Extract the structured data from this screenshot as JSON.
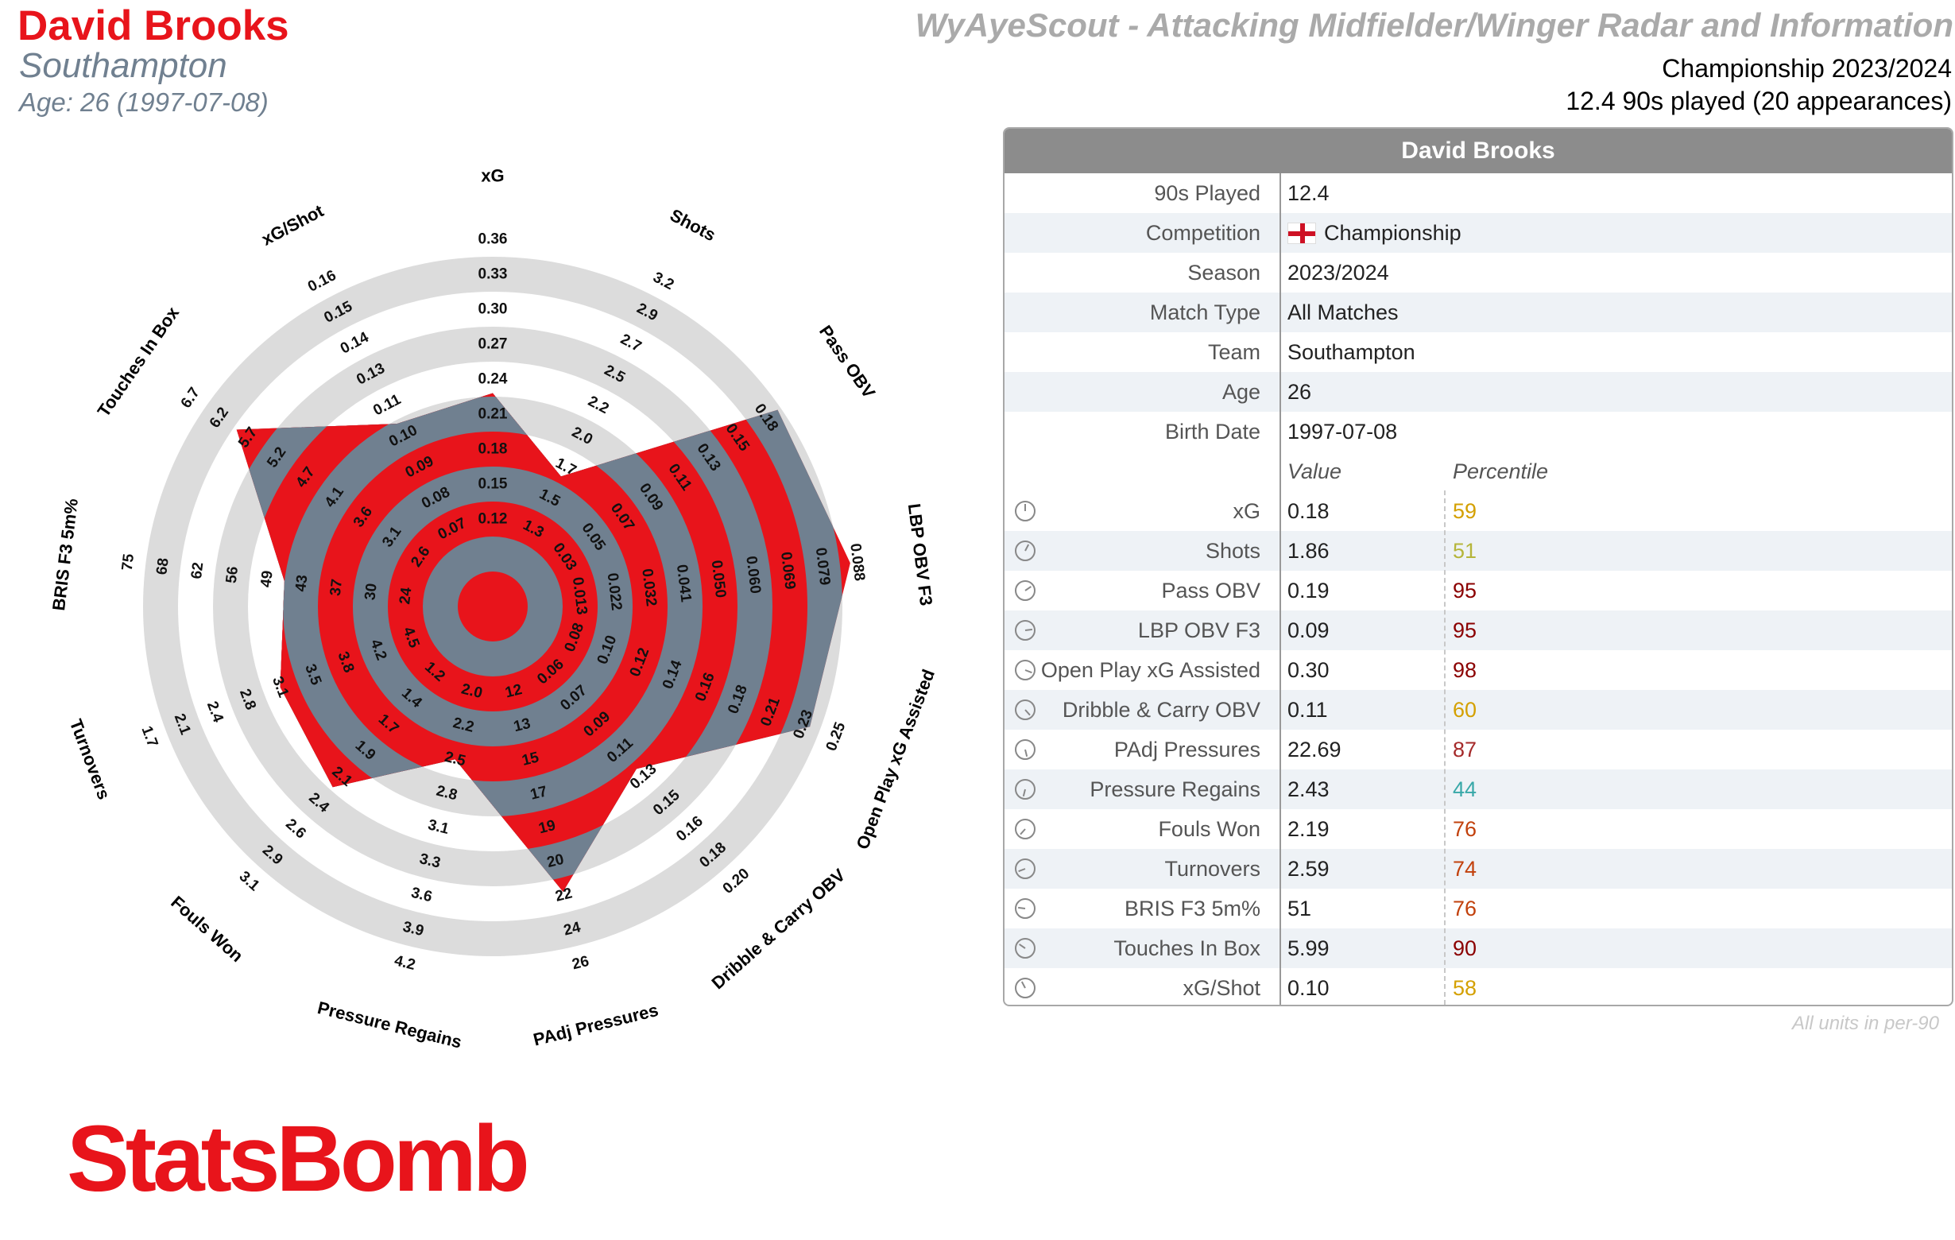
{
  "header": {
    "player_name": "David Brooks",
    "team": "Southampton",
    "age_line": "Age: 26 (1997-07-08)",
    "report_title": "WyAyeScout - Attacking Midfielder/Winger Radar and Information",
    "competition_season": "Championship 2023/2024",
    "minutes_line": "12.4 90s played (20 appearances)"
  },
  "colors": {
    "accent_red": "#e8141b",
    "radar_fill": "#708090",
    "ring_gray": "#dcdcdc"
  },
  "chart_data": {
    "type": "radar",
    "n_rings": 11,
    "metrics": [
      {
        "name": "xG",
        "value": 0.18,
        "percentile": 59,
        "ticks": [
          "0.12",
          "0.15",
          "0.18",
          "0.21",
          "0.24",
          "0.27",
          "0.30",
          "0.33",
          "0.36"
        ]
      },
      {
        "name": "Shots",
        "value": 1.86,
        "percentile": 51,
        "ticks": [
          "1.3",
          "1.5",
          "1.7",
          "2.0",
          "2.2",
          "2.5",
          "2.7",
          "2.9",
          "3.2"
        ]
      },
      {
        "name": "Pass OBV",
        "value": 0.19,
        "percentile": 95,
        "ticks": [
          "0.03",
          "0.05",
          "0.07",
          "0.09",
          "0.11",
          "0.13",
          "0.15",
          "0.18"
        ]
      },
      {
        "name": "LBP OBV F3",
        "value": 0.09,
        "percentile": 95,
        "ticks": [
          "0.013",
          "0.022",
          "0.032",
          "0.041",
          "0.050",
          "0.060",
          "0.069",
          "0.079",
          "0.088"
        ]
      },
      {
        "name": "Open Play xG Assisted",
        "value": 0.3,
        "percentile": 98,
        "ticks": [
          "0.08",
          "0.10",
          "0.12",
          "0.14",
          "0.16",
          "0.18",
          "0.21",
          "0.23",
          "0.25"
        ]
      },
      {
        "name": "Dribble & Carry OBV",
        "value": 0.11,
        "percentile": 60,
        "ticks": [
          "0.06",
          "0.07",
          "0.09",
          "0.11",
          "0.13",
          "0.15",
          "0.16",
          "0.18",
          "0.20"
        ]
      },
      {
        "name": "PAdj Pressures",
        "value": 22.69,
        "percentile": 87,
        "ticks": [
          "12",
          "13",
          "15",
          "17",
          "19",
          "20",
          "22",
          "24",
          "26"
        ]
      },
      {
        "name": "Pressure Regains",
        "value": 2.43,
        "percentile": 44,
        "ticks": [
          "2.0",
          "2.2",
          "2.5",
          "2.8",
          "3.1",
          "3.3",
          "3.6",
          "3.9",
          "4.2"
        ]
      },
      {
        "name": "Fouls Won",
        "value": 2.19,
        "percentile": 76,
        "ticks": [
          "1.2",
          "1.4",
          "1.7",
          "1.9",
          "2.1",
          "2.4",
          "2.6",
          "2.9",
          "3.1"
        ]
      },
      {
        "name": "Turnovers",
        "value": 2.59,
        "percentile": 74,
        "ticks": [
          "4.5",
          "4.2",
          "3.8",
          "3.5",
          "3.1",
          "2.8",
          "2.4",
          "2.1",
          "1.7"
        ]
      },
      {
        "name": "BRIS F3 5m%",
        "value": 51,
        "percentile": 76,
        "ticks": [
          "24",
          "30",
          "37",
          "43",
          "49",
          "56",
          "62",
          "68",
          "75"
        ]
      },
      {
        "name": "Touches In Box",
        "value": 5.99,
        "percentile": 90,
        "ticks": [
          "2.6",
          "3.1",
          "3.6",
          "4.1",
          "4.7",
          "5.2",
          "5.7",
          "6.2",
          "6.7"
        ]
      },
      {
        "name": "xG/Shot",
        "value": 0.1,
        "percentile": 58,
        "ticks": [
          "0.07",
          "0.08",
          "0.09",
          "0.10",
          "0.11",
          "0.13",
          "0.14",
          "0.15",
          "0.16"
        ]
      }
    ],
    "polygon_ring_level": [
      6.1,
      4.2,
      9.9,
      10.3,
      9.7,
      6.2,
      8.4,
      4.5,
      6.9,
      6.5,
      6.0,
      8.9,
      5.9
    ]
  },
  "table": {
    "header_title": "David Brooks",
    "info_rows": [
      {
        "label": "90s Played",
        "value": "12.4"
      },
      {
        "label": "Competition",
        "value": "Championship",
        "flag": "england-flag"
      },
      {
        "label": "Season",
        "value": "2023/2024"
      },
      {
        "label": "Match Type",
        "value": "All Matches"
      },
      {
        "label": "Team",
        "value": "Southampton"
      },
      {
        "label": "Age",
        "value": "26"
      },
      {
        "label": "Birth Date",
        "value": "1997-07-08"
      }
    ],
    "col_value": "Value",
    "col_percentile": "Percentile",
    "stat_rows": [
      {
        "label": "xG",
        "value": "0.18",
        "percentile": "59",
        "color": "#d4a000"
      },
      {
        "label": "Shots",
        "value": "1.86",
        "percentile": "51",
        "color": "#b5b53a"
      },
      {
        "label": "Pass OBV",
        "value": "0.19",
        "percentile": "95",
        "color": "#8b0000"
      },
      {
        "label": "LBP OBV F3",
        "value": "0.09",
        "percentile": "95",
        "color": "#8b0000"
      },
      {
        "label": "Open Play xG Assisted",
        "value": "0.30",
        "percentile": "98",
        "color": "#8b0000"
      },
      {
        "label": "Dribble & Carry OBV",
        "value": "0.11",
        "percentile": "60",
        "color": "#d4a000"
      },
      {
        "label": "PAdj Pressures",
        "value": "22.69",
        "percentile": "87",
        "color": "#a52a2a"
      },
      {
        "label": "Pressure Regains",
        "value": "2.43",
        "percentile": "44",
        "color": "#38a8a8"
      },
      {
        "label": "Fouls Won",
        "value": "2.19",
        "percentile": "76",
        "color": "#c2410c"
      },
      {
        "label": "Turnovers",
        "value": "2.59",
        "percentile": "74",
        "color": "#c2410c"
      },
      {
        "label": "BRIS F3 5m%",
        "value": "51",
        "percentile": "76",
        "color": "#c2410c"
      },
      {
        "label": "Touches In Box",
        "value": "5.99",
        "percentile": "90",
        "color": "#8b0000"
      },
      {
        "label": "xG/Shot",
        "value": "0.10",
        "percentile": "58",
        "color": "#d4a000"
      }
    ]
  },
  "units_note": "All units in per-90",
  "logo_text": "StatsBomb"
}
